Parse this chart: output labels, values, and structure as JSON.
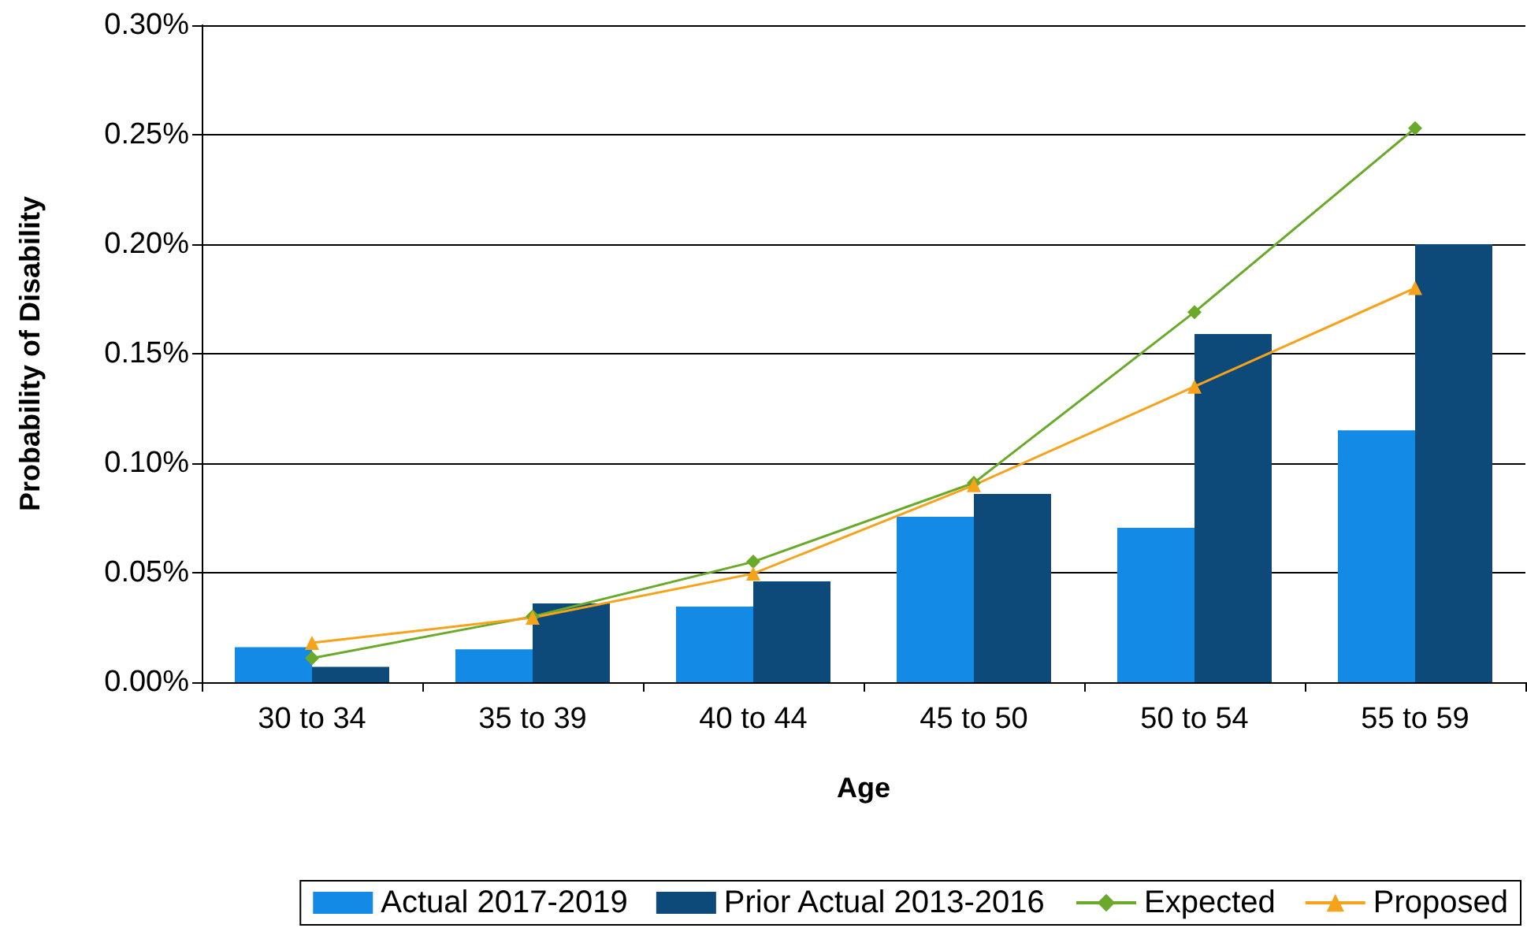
{
  "chart_data": {
    "type": "bar",
    "xlabel": "Age",
    "ylabel": "Probability of Disability",
    "categories": [
      "30 to 34",
      "35 to 39",
      "40 to 44",
      "45 to 50",
      "50 to 54",
      "55 to 59"
    ],
    "series": [
      {
        "name": "Actual 2017-2019",
        "color": "#138be6",
        "values": [
          0.016,
          0.015,
          0.0345,
          0.0755,
          0.0705,
          0.115
        ]
      },
      {
        "name": "Prior Actual 2013-2016",
        "color": "#0d4a7a",
        "values": [
          0.007,
          0.036,
          0.046,
          0.086,
          0.159,
          0.2
        ]
      },
      {
        "name": "Expected",
        "type": "line",
        "color": "#6aaa2a",
        "marker": "diamond",
        "values": [
          0.011,
          0.03,
          0.055,
          0.091,
          0.169,
          0.253
        ]
      },
      {
        "name": "Proposed",
        "type": "line",
        "color": "#f7a21b",
        "marker": "triangle",
        "values": [
          0.018,
          0.0295,
          0.0496,
          0.09,
          0.135,
          0.18
        ]
      }
    ],
    "ylim": [
      0,
      0.3
    ],
    "yticks": [
      {
        "value": 0,
        "label": "0.00%"
      },
      {
        "value": 0.05,
        "label": "0.05%"
      },
      {
        "value": 0.1,
        "label": "0.10%"
      },
      {
        "value": 0.15,
        "label": "0.15%"
      },
      {
        "value": 0.2,
        "label": "0.20%"
      },
      {
        "value": 0.25,
        "label": "0.25%"
      },
      {
        "value": 0.3,
        "label": "0.30%"
      }
    ],
    "grid": "y",
    "legend": "bottom",
    "line_style": "solid"
  }
}
